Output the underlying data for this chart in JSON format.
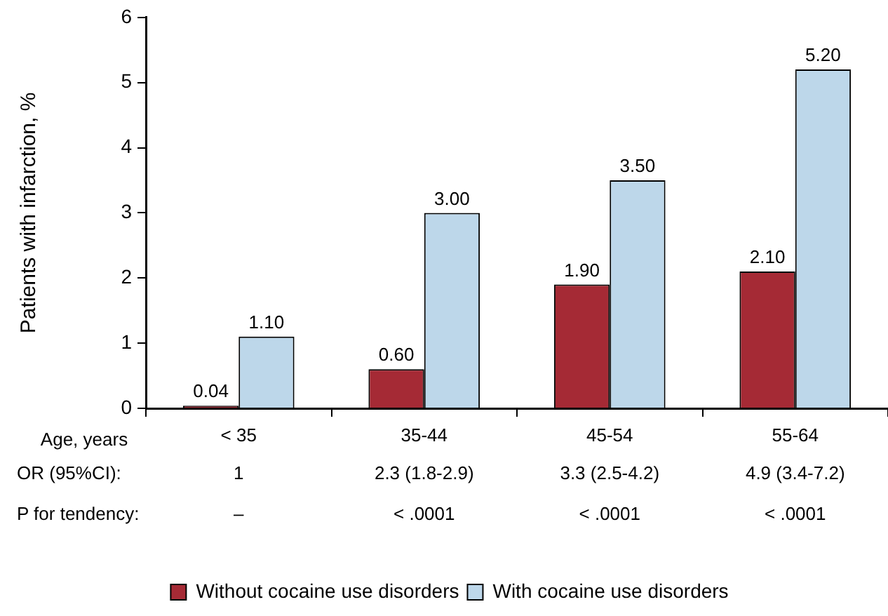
{
  "chart_data": {
    "type": "bar",
    "categories": [
      "< 35",
      "35-44",
      "45-54",
      "55-64"
    ],
    "xlabel": "Age, years",
    "ylabel": "Patients with infarction, %",
    "ylim": [
      0,
      6
    ],
    "yticks": [
      0,
      1,
      2,
      3,
      4,
      5,
      6
    ],
    "series": [
      {
        "name": "Without cocaine use disorders",
        "color": "#a52a35",
        "values": [
          0.04,
          0.6,
          1.9,
          2.1
        ],
        "value_labels": [
          "0.04",
          "0.60",
          "1.90",
          "2.10"
        ]
      },
      {
        "name": "With cocaine use disorders",
        "color": "#bdd7ea",
        "values": [
          1.1,
          3.0,
          3.5,
          5.2
        ],
        "value_labels": [
          "1.10",
          "3.00",
          "3.50",
          "5.20"
        ]
      }
    ],
    "annotations": [
      "OR (95%CI):",
      "1",
      "2.3 (1.8-2.9)",
      "3.3 (2.5-4.2)",
      "4.9 (3.4-7.2)",
      "P for tendency:",
      "–",
      "< .0001",
      "< .0001",
      "< .0001"
    ],
    "grid": false,
    "legend": "bottom"
  }
}
